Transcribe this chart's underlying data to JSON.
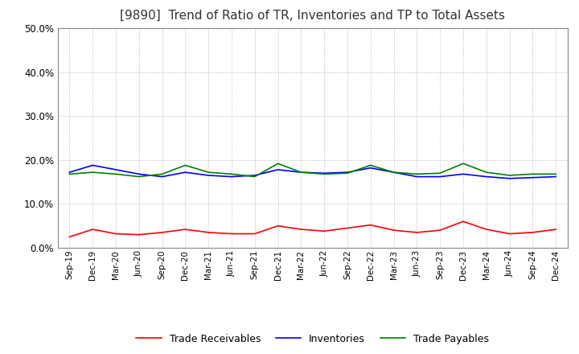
{
  "title": "[9890]  Trend of Ratio of TR, Inventories and TP to Total Assets",
  "title_fontsize": 11,
  "xlabels": [
    "Sep-19",
    "Dec-19",
    "Mar-20",
    "Jun-20",
    "Sep-20",
    "Dec-20",
    "Mar-21",
    "Jun-21",
    "Sep-21",
    "Dec-21",
    "Mar-22",
    "Jun-22",
    "Sep-22",
    "Dec-22",
    "Mar-23",
    "Jun-23",
    "Sep-23",
    "Dec-23",
    "Mar-24",
    "Jun-24",
    "Sep-24",
    "Dec-24"
  ],
  "trade_receivables": [
    2.5,
    4.2,
    3.2,
    3.0,
    3.5,
    4.2,
    3.5,
    3.2,
    3.2,
    5.0,
    4.2,
    3.8,
    4.5,
    5.2,
    4.0,
    3.5,
    4.0,
    6.0,
    4.2,
    3.2,
    3.5,
    4.2
  ],
  "inventories": [
    17.2,
    18.8,
    17.8,
    16.8,
    16.2,
    17.2,
    16.5,
    16.2,
    16.5,
    17.8,
    17.2,
    17.0,
    17.2,
    18.2,
    17.2,
    16.2,
    16.2,
    16.8,
    16.2,
    15.8,
    16.0,
    16.2
  ],
  "trade_payables": [
    16.8,
    17.2,
    16.8,
    16.2,
    16.8,
    18.8,
    17.2,
    16.8,
    16.2,
    19.2,
    17.2,
    16.8,
    17.0,
    18.8,
    17.2,
    16.8,
    17.0,
    19.2,
    17.2,
    16.5,
    16.8,
    16.8
  ],
  "tr_color": "#ff0000",
  "inv_color": "#0000ff",
  "tp_color": "#008000",
  "ylim": [
    0,
    50
  ],
  "yticks": [
    0,
    10,
    20,
    30,
    40,
    50
  ],
  "background_color": "#ffffff",
  "grid_color": "#aaaaaa"
}
